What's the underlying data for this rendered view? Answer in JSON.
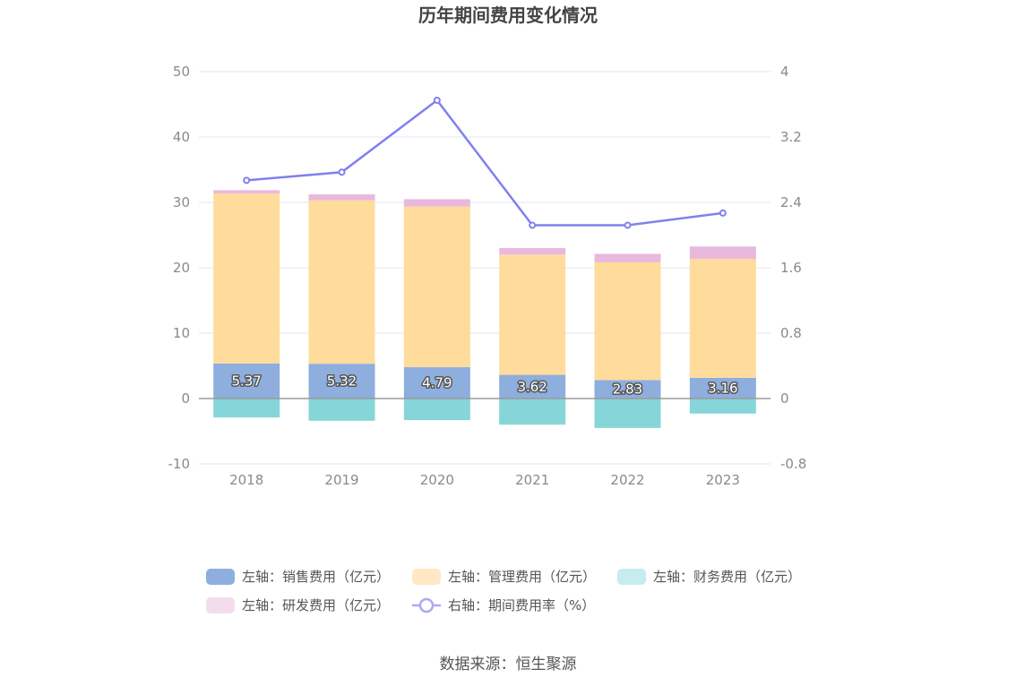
{
  "chart_data": {
    "type": "bar",
    "title": "历年期间费用变化情况",
    "categories": [
      "2018",
      "2019",
      "2020",
      "2021",
      "2022",
      "2023"
    ],
    "left_axis": {
      "ylim": [
        -10,
        50
      ],
      "ticks": [
        "50",
        "40",
        "30",
        "20",
        "10",
        "0",
        "-10"
      ],
      "tick_values": [
        50,
        40,
        30,
        20,
        10,
        0,
        -10
      ]
    },
    "right_axis": {
      "ylim": [
        -0.8,
        4
      ],
      "ticks": [
        "4",
        "3.2",
        "2.4",
        "1.6",
        "0.8",
        "0",
        "-0.8"
      ],
      "tick_values": [
        4,
        3.2,
        2.4,
        1.6,
        0.8,
        0,
        -0.8
      ]
    },
    "series": [
      {
        "name": "左轴：销售费用（亿元）",
        "axis": "left",
        "kind": "bar",
        "color": "#8eaedd",
        "values": [
          5.37,
          5.32,
          4.79,
          3.62,
          2.83,
          3.16
        ],
        "labels": [
          "5.37",
          "5.32",
          "4.79",
          "3.62",
          "2.83",
          "3.16"
        ]
      },
      {
        "name": "左轴：管理费用（亿元）",
        "axis": "left",
        "kind": "bar",
        "color": "#ffdb9c",
        "values": [
          26.0,
          25.0,
          24.6,
          18.4,
          18.0,
          18.2
        ]
      },
      {
        "name": "左轴：财务费用（亿元）",
        "axis": "left",
        "kind": "bar",
        "color": "#86d5d9",
        "values": [
          -2.9,
          -3.4,
          -3.3,
          -4.0,
          -4.5,
          -2.3
        ]
      },
      {
        "name": "左轴：研发费用（亿元）",
        "axis": "left",
        "kind": "bar",
        "color": "#e8b9dd",
        "values": [
          0.5,
          0.9,
          1.1,
          1.0,
          1.3,
          1.9
        ]
      },
      {
        "name": "右轴：期间费用率（%）",
        "axis": "right",
        "kind": "line",
        "color": "#8080f0",
        "values": [
          2.67,
          2.77,
          3.65,
          2.12,
          2.12,
          2.27
        ]
      }
    ],
    "legend_colors": [
      "#8eaedd",
      "#ffe8c3",
      "#c5ecee",
      "#f3dcee",
      "#a9a9f5"
    ],
    "grid": true,
    "legend_position": "bottom"
  },
  "source": "数据来源：恒生聚源"
}
